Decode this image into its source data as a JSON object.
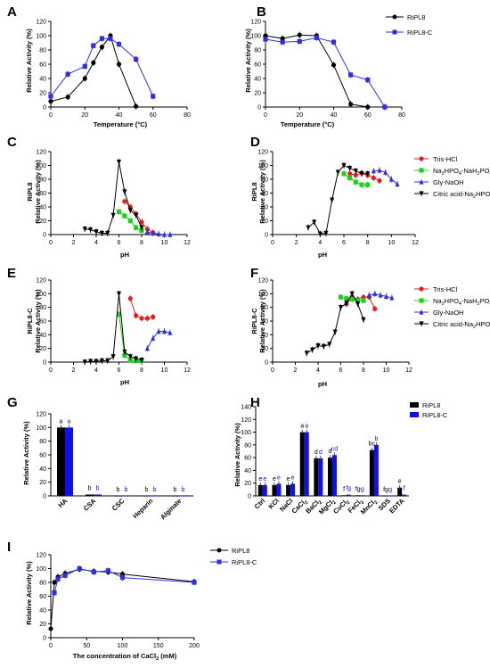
{
  "chart_data": [
    {
      "id": "A",
      "panel_label": "A",
      "type": "line",
      "xlabel": "Temperature (°C)",
      "ylabel": "Relative Activity (%)",
      "xlim": [
        0,
        80
      ],
      "ylim": [
        0,
        120
      ],
      "xticks": [
        0,
        20,
        40,
        60,
        80
      ],
      "yticks": [
        0,
        20,
        40,
        60,
        80,
        100,
        120
      ],
      "series": [
        {
          "name": "RiPL8",
          "color": "#000000",
          "marker": "circle",
          "x": [
            0,
            10,
            20,
            25,
            30,
            35,
            40,
            50
          ],
          "y": [
            8,
            14,
            40,
            62,
            84,
            100,
            60,
            1
          ]
        },
        {
          "name": "RiPL8-C",
          "color": "#3030e0",
          "marker": "square",
          "x": [
            0,
            10,
            20,
            25,
            30,
            35,
            40,
            50,
            60
          ],
          "y": [
            15,
            46,
            57,
            86,
            96,
            96,
            88,
            67,
            15
          ]
        }
      ]
    },
    {
      "id": "B",
      "panel_label": "B",
      "type": "line",
      "xlabel": "Temperature (°C)",
      "ylabel": "Relative Activity (%)",
      "xlim": [
        0,
        80
      ],
      "ylim": [
        0,
        120
      ],
      "xticks": [
        0,
        20,
        40,
        60,
        80
      ],
      "yticks": [
        0,
        20,
        40,
        60,
        80,
        100,
        120
      ],
      "legend": [
        "RiPL8",
        "RiPL8-C"
      ],
      "legend_position": "top-right",
      "series": [
        {
          "name": "RiPL8",
          "color": "#000000",
          "marker": "circle",
          "x": [
            0,
            10,
            20,
            30,
            40,
            50,
            60,
            70
          ],
          "y": [
            100,
            96,
            101,
            100,
            59,
            4,
            0,
            0
          ]
        },
        {
          "name": "RiPL8-C",
          "color": "#3030e0",
          "marker": "square",
          "x": [
            0,
            10,
            20,
            30,
            40,
            50,
            60,
            70
          ],
          "y": [
            95,
            91,
            92,
            97,
            91,
            45,
            38,
            0
          ]
        }
      ]
    },
    {
      "id": "C",
      "panel_label": "C",
      "type": "line",
      "xlabel": "pH",
      "ylabel": "RiPL8\nRelative Activity (%)",
      "xlim": [
        0,
        12
      ],
      "ylim": [
        0,
        120
      ],
      "xticks": [
        0,
        2,
        4,
        6,
        8,
        10,
        12
      ],
      "yticks": [
        0,
        20,
        40,
        60,
        80,
        100,
        120
      ],
      "series": [
        {
          "name": "Tris-HCl",
          "color": "#e02020",
          "marker": "circle",
          "x": [
            6.5,
            7,
            7.5,
            8,
            8.5,
            9
          ],
          "y": [
            48,
            40,
            30,
            18,
            8,
            3
          ]
        },
        {
          "name": "Na2HPO4-NaH2PO4",
          "color": "#20d020",
          "marker": "square",
          "x": [
            6,
            6.5,
            7,
            7.5,
            8
          ],
          "y": [
            33,
            27,
            20,
            10,
            6
          ]
        },
        {
          "name": "Gly-NaOH",
          "color": "#3030e0",
          "marker": "triangle-up",
          "x": [
            8.5,
            9,
            9.5,
            10,
            10.5
          ],
          "y": [
            4,
            2,
            1,
            0,
            0
          ]
        },
        {
          "name": "Citric acid-Na2HPO4",
          "color": "#000000",
          "marker": "triangle-down",
          "x": [
            3,
            3.5,
            4,
            4.5,
            5,
            5.5,
            6,
            6.5,
            7,
            7.5,
            8
          ],
          "y": [
            8,
            7,
            4,
            2,
            2,
            28,
            105,
            62,
            35,
            28,
            10
          ]
        }
      ]
    },
    {
      "id": "D",
      "panel_label": "D",
      "type": "line",
      "xlabel": "pH",
      "ylabel": "RiPL8\nRelative Activity (%)",
      "xlim": [
        0,
        12
      ],
      "ylim": [
        0,
        120
      ],
      "xticks": [
        0,
        2,
        4,
        6,
        8,
        10,
        12
      ],
      "yticks": [
        0,
        20,
        40,
        60,
        80,
        100,
        120
      ],
      "legend": [
        "Tris-HCl",
        "Na2HPO4-NaH2PO4",
        "Gly-NaOH",
        "Citric acid-Na2HPO4"
      ],
      "legend_position": "top-right",
      "series": [
        {
          "name": "Tris-HCl",
          "color": "#e02020",
          "marker": "circle",
          "x": [
            6.5,
            7,
            7.5,
            8,
            8.5,
            9
          ],
          "y": [
            88,
            86,
            89,
            86,
            82,
            78
          ]
        },
        {
          "name": "Na2HPO4-NaH2PO4",
          "color": "#20d020",
          "marker": "square",
          "x": [
            6,
            6.5,
            7,
            7.5,
            8
          ],
          "y": [
            88,
            82,
            76,
            72,
            72
          ]
        },
        {
          "name": "Gly-NaOH",
          "color": "#3030e0",
          "marker": "triangle-up",
          "x": [
            8.5,
            9,
            9.5,
            10,
            10.5
          ],
          "y": [
            92,
            93,
            90,
            80,
            73
          ]
        },
        {
          "name": "Citric acid-Na2HPO4",
          "color": "#000000",
          "marker": "triangle-down",
          "x": [
            3,
            3.5,
            4,
            4.5,
            5,
            5.5,
            6,
            6.5,
            7,
            7.5,
            8
          ],
          "y": [
            10,
            18,
            1,
            2,
            50,
            90,
            100,
            96,
            92,
            88,
            88
          ]
        }
      ]
    },
    {
      "id": "E",
      "panel_label": "E",
      "type": "line",
      "xlabel": "pH",
      "ylabel": "RiPL8-C\nRelative Activity (%)",
      "xlim": [
        0,
        12
      ],
      "ylim": [
        0,
        120
      ],
      "xticks": [
        0,
        2,
        4,
        6,
        8,
        10,
        12
      ],
      "yticks": [
        0,
        20,
        40,
        60,
        80,
        100,
        120
      ],
      "series": [
        {
          "name": "Tris-HCl",
          "color": "#e02020",
          "marker": "circle",
          "x": [
            7,
            7.5,
            8,
            8.5,
            9
          ],
          "y": [
            93,
            68,
            64,
            64,
            66
          ]
        },
        {
          "name": "Na2HPO4-NaH2PO4",
          "color": "#20d020",
          "marker": "square",
          "x": [
            6,
            6.5,
            7,
            7.5,
            8
          ],
          "y": [
            70,
            10,
            3,
            2,
            2
          ]
        },
        {
          "name": "Gly-NaOH",
          "color": "#3030e0",
          "marker": "triangle-up",
          "x": [
            8.5,
            9,
            9.5,
            10,
            10.5
          ],
          "y": [
            20,
            35,
            45,
            45,
            43
          ]
        },
        {
          "name": "Citric acid-Na2HPO4",
          "color": "#000000",
          "marker": "triangle-down",
          "x": [
            3,
            3.5,
            4,
            4.5,
            5,
            5.5,
            6,
            6.5,
            7,
            7.5,
            8
          ],
          "y": [
            0,
            1,
            1,
            2,
            2,
            8,
            100,
            15,
            8,
            5,
            3
          ]
        }
      ]
    },
    {
      "id": "F",
      "panel_label": "F",
      "type": "line",
      "xlabel": "pH",
      "ylabel": "RiPL8-C\nRelative Activity (%)",
      "xlim": [
        0,
        12
      ],
      "ylim": [
        0,
        120
      ],
      "xticks": [
        0,
        2,
        4,
        6,
        8,
        10,
        12
      ],
      "yticks": [
        0,
        20,
        40,
        60,
        80,
        100,
        120
      ],
      "legend": [
        "Tris-HCl",
        "Na2HPO4-NaH2PO4",
        "Gly-NaOH",
        "Citric acid-Na2HPO4"
      ],
      "legend_position": "top-right",
      "series": [
        {
          "name": "Tris-HCl",
          "color": "#e02020",
          "marker": "circle",
          "x": [
            6.5,
            7,
            7.5,
            8,
            8.5,
            9
          ],
          "y": [
            85,
            95,
            92,
            95,
            95,
            78
          ]
        },
        {
          "name": "Na2HPO4-NaH2PO4",
          "color": "#20d020",
          "marker": "square",
          "x": [
            6,
            6.5,
            7,
            7.5,
            8
          ],
          "y": [
            95,
            93,
            92,
            90,
            90
          ]
        },
        {
          "name": "Gly-NaOH",
          "color": "#3030e0",
          "marker": "triangle-up",
          "x": [
            8.5,
            9,
            9.5,
            10,
            10.5
          ],
          "y": [
            98,
            100,
            98,
            96,
            94
          ]
        },
        {
          "name": "Citric acid-Na2HPO4",
          "color": "#000000",
          "marker": "triangle-down",
          "x": [
            3,
            3.5,
            4,
            4.5,
            5,
            5.5,
            6,
            6.5,
            7,
            7.5,
            8
          ],
          "y": [
            13,
            18,
            24,
            23,
            26,
            44,
            80,
            86,
            100,
            85,
            62
          ]
        }
      ]
    },
    {
      "id": "G",
      "panel_label": "G",
      "type": "bar",
      "xlabel": "",
      "ylabel": "Relative Activity (%)",
      "ylim": [
        0,
        120
      ],
      "yticks": [
        0,
        20,
        40,
        60,
        80,
        100,
        120
      ],
      "categories": [
        "HA",
        "CSA",
        "CSC",
        "Heparin",
        "Alginate"
      ],
      "series": [
        {
          "name": "RiPL8",
          "color": "#000000",
          "values": [
            100,
            2,
            0,
            0,
            0
          ],
          "letters": [
            "a",
            "b",
            "b",
            "b",
            "b"
          ]
        },
        {
          "name": "RiPL8-C",
          "color": "#1010ee",
          "values": [
            100,
            2,
            0,
            0,
            0
          ],
          "letters": [
            "a",
            "b",
            "b",
            "b",
            "b"
          ]
        }
      ]
    },
    {
      "id": "H",
      "panel_label": "H",
      "type": "bar",
      "xlabel": "",
      "ylabel": "Relative Activity (%)",
      "ylim": [
        0,
        140
      ],
      "yticks": [
        0,
        20,
        40,
        60,
        80,
        100,
        120,
        140
      ],
      "legend": [
        "RiPL8",
        "RiPL8-C"
      ],
      "legend_position": "top-right",
      "categories": [
        "Ctrl",
        "KCl",
        "NaCl",
        "CaCl2",
        "BaCl2",
        "MgCl2",
        "CuCl2",
        "FeCl3",
        "MnCl2",
        "SDS",
        "EDTA"
      ],
      "series": [
        {
          "name": "RiPL8",
          "color": "#000000",
          "values": [
            17,
            17,
            17,
            100,
            59,
            60,
            1,
            1,
            72,
            0,
            13
          ],
          "letters": [
            "e",
            "e",
            "e",
            "a",
            "d",
            "d",
            "f",
            "fg",
            "bc",
            "fg",
            "e"
          ]
        },
        {
          "name": "RiPL8-C",
          "color": "#1010ee",
          "values": [
            17,
            19,
            19,
            100,
            59,
            64,
            2,
            1,
            80,
            0,
            2
          ],
          "letters": [
            "e",
            "e",
            "e",
            "a",
            "d",
            "cd",
            "fg",
            "g",
            "b",
            "g",
            "f"
          ]
        }
      ]
    },
    {
      "id": "I",
      "panel_label": "I",
      "type": "line",
      "xlabel": "The concentration of CaCl2 (mM)",
      "ylabel": "Relative Activity (%)",
      "xlim": [
        0,
        200
      ],
      "ylim": [
        0,
        120
      ],
      "xticks": [
        0,
        50,
        100,
        150,
        200
      ],
      "yticks": [
        0,
        20,
        40,
        60,
        80,
        100,
        120
      ],
      "legend": [
        "RiPL8",
        "RiPL8-C"
      ],
      "legend_position": "top-right",
      "series": [
        {
          "name": "RiPL8",
          "color": "#000000",
          "marker": "circle",
          "x": [
            0,
            5,
            10,
            20,
            40,
            60,
            80,
            100,
            200
          ],
          "y": [
            13,
            80,
            88,
            93,
            99,
            96,
            95,
            92,
            81
          ]
        },
        {
          "name": "RiPL8-C",
          "color": "#3030e0",
          "marker": "square",
          "x": [
            5,
            10,
            20,
            40,
            60,
            80,
            100,
            200
          ],
          "y": [
            65,
            85,
            90,
            100,
            95,
            97,
            87,
            80
          ]
        }
      ]
    }
  ]
}
